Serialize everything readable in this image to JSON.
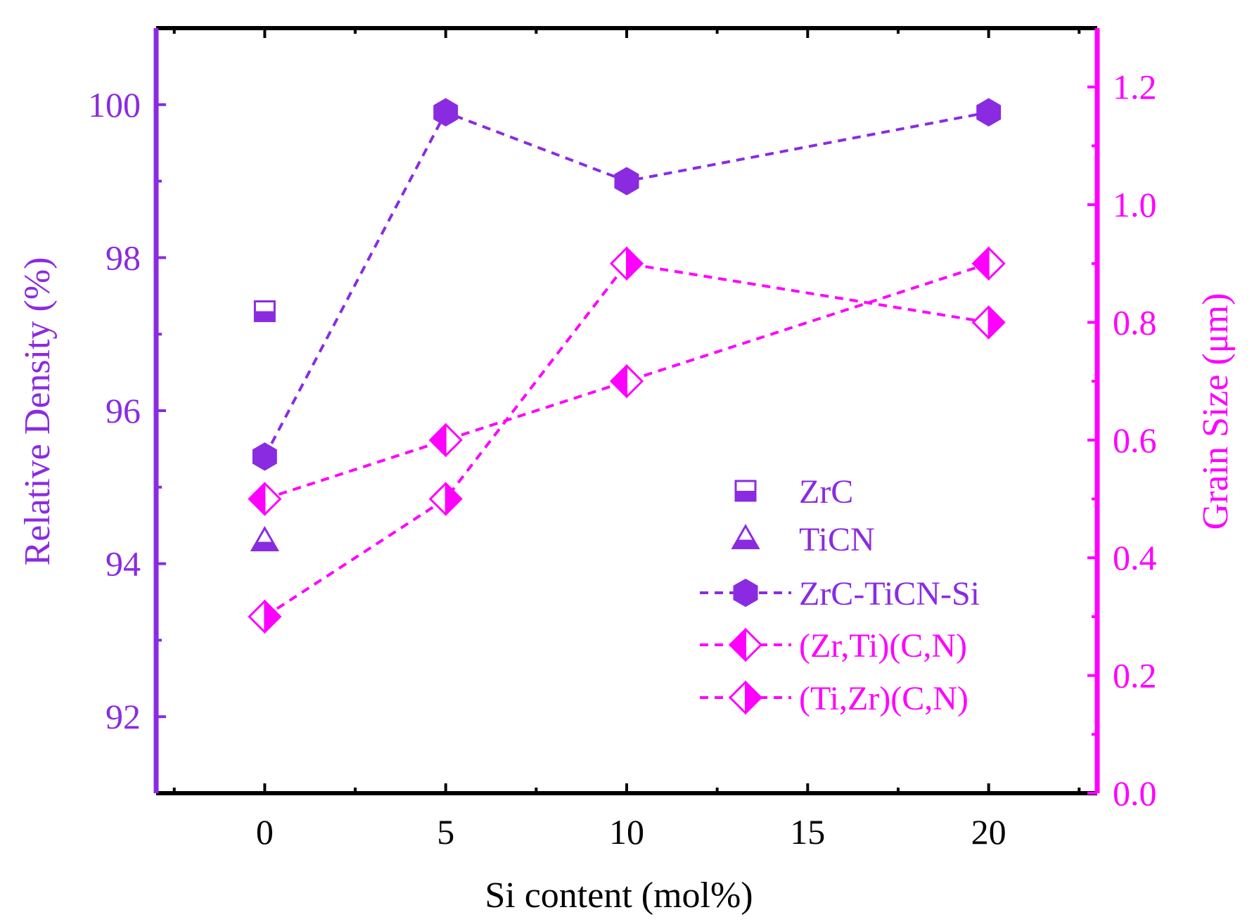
{
  "chart_data": {
    "type": "line",
    "xlabel": "Si content (mol%)",
    "ylabel_left": "Relative Density (%)",
    "ylabel_right": "Grain Size (μm)",
    "xlim": [
      -3,
      23
    ],
    "ylim_left": [
      91,
      101
    ],
    "ylim_right": [
      0,
      1.3
    ],
    "x_ticks": [
      0,
      5,
      10,
      15,
      20
    ],
    "x_tick_labels": [
      "0",
      "5",
      "10",
      "15",
      "20"
    ],
    "y_left_ticks": [
      92,
      94,
      96,
      98,
      100
    ],
    "y_left_tick_labels": [
      "92",
      "94",
      "96",
      "98",
      "100"
    ],
    "y_right_ticks": [
      0,
      0.2,
      0.4,
      0.6,
      0.8,
      1.0,
      1.2
    ],
    "y_right_tick_labels": [
      "0.0",
      "0.2",
      "0.4",
      "0.6",
      "0.8",
      "1.0",
      "1.2"
    ],
    "colors": {
      "purple": "#8a2be2",
      "magenta": "#ff00ff",
      "frame": "#000000"
    },
    "series": [
      {
        "name": "ZrC",
        "axis": "left",
        "marker": "square-half",
        "line": false,
        "color": "#8a2be2",
        "x": [
          0
        ],
        "y": [
          97.3
        ]
      },
      {
        "name": "TiCN",
        "axis": "left",
        "marker": "triangle-half",
        "line": false,
        "color": "#8a2be2",
        "x": [
          0
        ],
        "y": [
          94.3
        ]
      },
      {
        "name": "ZrC-TiCN-Si",
        "axis": "left",
        "marker": "hexagon",
        "line": true,
        "color": "#8a2be2",
        "x": [
          0,
          5,
          10,
          20
        ],
        "y": [
          95.4,
          99.9,
          99.0,
          99.9
        ]
      },
      {
        "name": "(Zr,Ti)(C,N)",
        "axis": "right",
        "marker": "diamond-left",
        "line": true,
        "color": "#ff00ff",
        "x": [
          0,
          5,
          10,
          20
        ],
        "y": [
          0.5,
          0.6,
          0.7,
          0.9
        ]
      },
      {
        "name": "(Ti,Zr)(C,N)",
        "axis": "right",
        "marker": "diamond-right",
        "line": true,
        "color": "#ff00ff",
        "x": [
          0,
          5,
          10,
          20
        ],
        "y": [
          0.3,
          0.5,
          0.9,
          0.8
        ]
      }
    ],
    "legend": {
      "position": "center-right",
      "entries": [
        "ZrC",
        "TiCN",
        "ZrC-TiCN-Si",
        "(Zr,Ti)(C,N)",
        "(Ti,Zr)(C,N)"
      ]
    }
  }
}
